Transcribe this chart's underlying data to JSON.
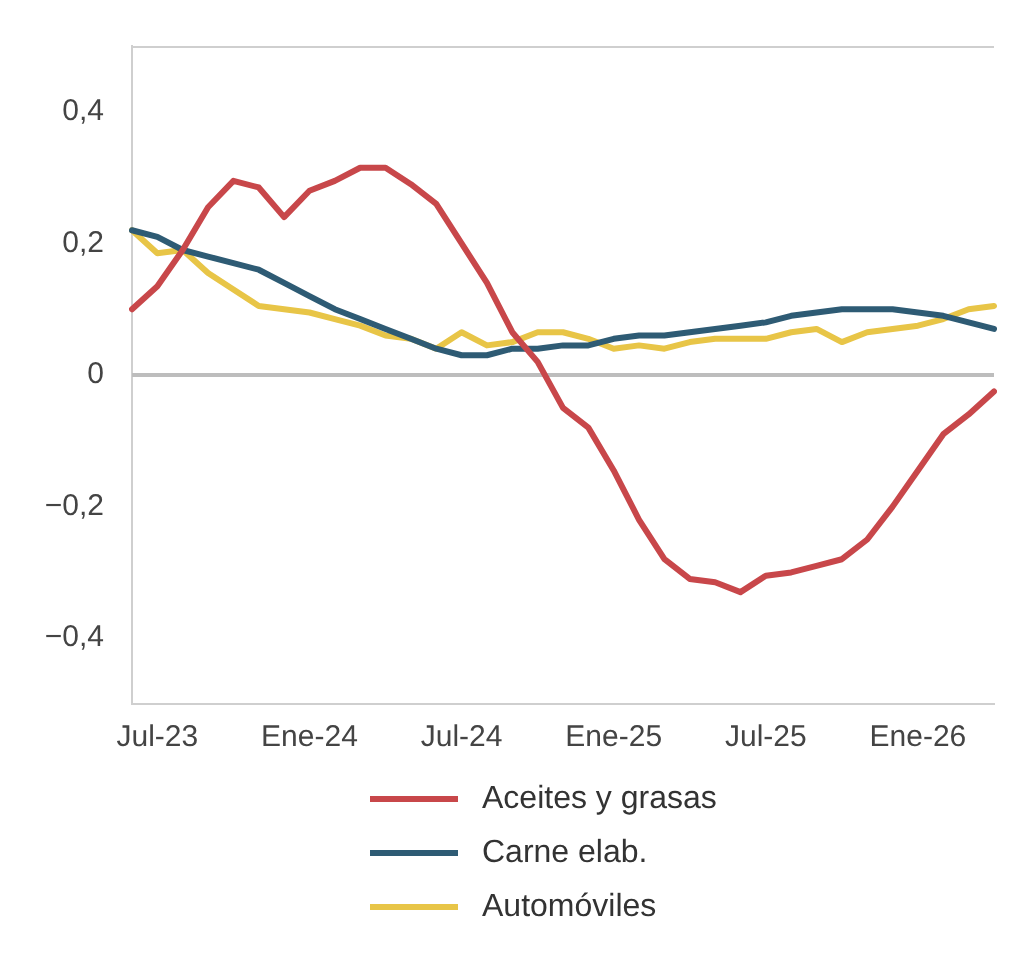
{
  "chart_data": {
    "type": "line",
    "categories": [
      null,
      "Jul-23",
      null,
      null,
      null,
      null,
      null,
      "Ene-24",
      null,
      null,
      null,
      null,
      null,
      "Jul-24",
      null,
      null,
      null,
      null,
      null,
      "Ene-25",
      null,
      null,
      null,
      null,
      null,
      "Jul-25",
      null,
      null,
      null,
      null,
      null,
      "Ene-26",
      null,
      null,
      null
    ],
    "series": [
      {
        "name": "Aceites y grasas",
        "color": "#c8474a",
        "values": [
          0.1,
          0.135,
          0.19,
          0.255,
          0.295,
          0.285,
          0.24,
          0.28,
          0.295,
          0.315,
          0.315,
          0.29,
          0.26,
          0.2,
          0.14,
          0.065,
          0.02,
          -0.05,
          -0.08,
          -0.145,
          -0.22,
          -0.28,
          -0.31,
          -0.315,
          -0.33,
          -0.305,
          -0.3,
          -0.29,
          -0.28,
          -0.25,
          -0.2,
          -0.145,
          -0.09,
          -0.06,
          -0.025
        ]
      },
      {
        "name": "Carne elab.",
        "color": "#2e5b74",
        "values": [
          0.22,
          0.21,
          0.19,
          0.18,
          0.17,
          0.16,
          0.14,
          0.12,
          0.1,
          0.085,
          0.07,
          0.055,
          0.04,
          0.03,
          0.03,
          0.04,
          0.04,
          0.045,
          0.045,
          0.055,
          0.06,
          0.06,
          0.065,
          0.07,
          0.075,
          0.08,
          0.09,
          0.095,
          0.1,
          0.1,
          0.1,
          0.095,
          0.09,
          0.08,
          0.07
        ]
      },
      {
        "name": "Automóviles",
        "color": "#e8c547",
        "values": [
          0.22,
          0.185,
          0.19,
          0.155,
          0.13,
          0.105,
          0.1,
          0.095,
          0.085,
          0.075,
          0.06,
          0.055,
          0.04,
          0.065,
          0.045,
          0.05,
          0.065,
          0.065,
          0.055,
          0.04,
          0.045,
          0.04,
          0.05,
          0.055,
          0.055,
          0.055,
          0.065,
          0.07,
          0.05,
          0.065,
          0.07,
          0.075,
          0.085,
          0.1,
          0.105
        ]
      }
    ],
    "ylim": [
      -0.5,
      0.5
    ],
    "yticks": [
      {
        "value": -0.4,
        "label": "−0,4"
      },
      {
        "value": -0.2,
        "label": "−0,2"
      },
      0,
      {
        "value": 0.2,
        "label": "0,2"
      },
      {
        "value": 0.4,
        "label": "0,4"
      }
    ],
    "ref_lines": [
      {
        "axis": "y",
        "value": 0,
        "color": "#bdbdbd"
      }
    ],
    "grid": false,
    "legend": "bottom",
    "marker": "none",
    "line_style": "solid"
  }
}
